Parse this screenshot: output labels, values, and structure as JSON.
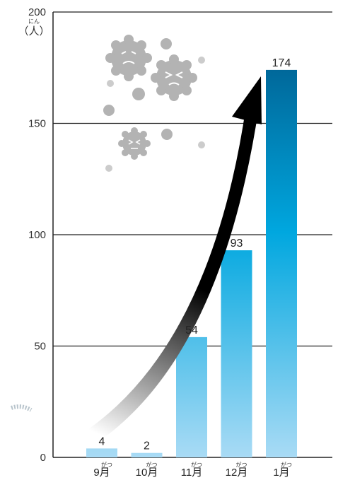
{
  "chart_data": {
    "type": "bar",
    "categories": [
      "9月",
      "10月",
      "11月",
      "12月",
      "1月"
    ],
    "category_ruby": "がつ",
    "values": [
      4,
      2,
      54,
      93,
      174
    ],
    "ylim": [
      0,
      200
    ],
    "yticks": [
      0,
      50,
      100,
      150,
      200
    ],
    "ylabel": "（人）",
    "ylabel_ruby": "にん",
    "grid": true,
    "colors": {
      "bar_top": "#00689a",
      "bar_mid": "#00a7df",
      "bar_bottom": "#a9dbf5",
      "grid": "#222222",
      "trend_arrow": "#000000",
      "virus": "#b3b3b3"
    }
  },
  "illustration": {
    "virus_icons": [
      "virus-icon",
      "virus-icon",
      "virus-icon"
    ],
    "trend_icon": "rising-arrow-icon"
  }
}
